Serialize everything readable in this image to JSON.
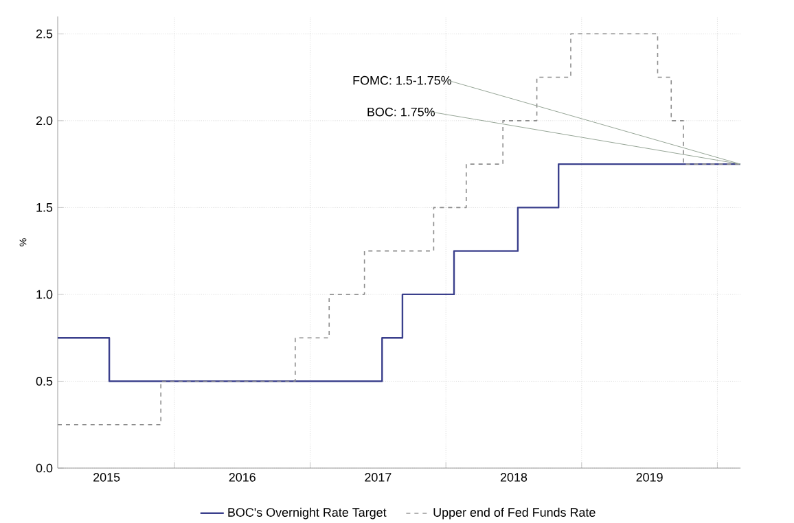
{
  "chart_data": {
    "type": "step",
    "ylabel": "%",
    "xlim": [
      2015.14,
      2020.17
    ],
    "ylim": [
      0,
      2.6
    ],
    "xticks": [
      {
        "value": 2016,
        "label": null
      },
      {
        "value": 2017,
        "label": null
      },
      {
        "value": 2018,
        "label": null
      },
      {
        "value": 2019,
        "label": null
      },
      {
        "value": 2020,
        "label": null
      },
      {
        "value": 2015.5,
        "label": "2015"
      },
      {
        "value": 2016.5,
        "label": "2016"
      },
      {
        "value": 2017.5,
        "label": "2017"
      },
      {
        "value": 2018.5,
        "label": "2018"
      },
      {
        "value": 2019.5,
        "label": "2019"
      }
    ],
    "yticks": [
      {
        "value": 0,
        "label": "0.0"
      },
      {
        "value": 0.5,
        "label": "0.5"
      },
      {
        "value": 1,
        "label": "1.0"
      },
      {
        "value": 1.5,
        "label": "1.5"
      },
      {
        "value": 2,
        "label": "2.0"
      },
      {
        "value": 2.5,
        "label": "2.5"
      }
    ],
    "grid": true,
    "legend": "bottom",
    "marker": "none",
    "series": [
      {
        "name": "BOC's Overnight Rate Target",
        "color": "#3a3f8c",
        "line_style": "solid",
        "x": [
          2015.14,
          2015.52,
          2017.53,
          2017.68,
          2018.06,
          2018.53,
          2018.83,
          2020.17
        ],
        "values": [
          0.75,
          0.5,
          0.75,
          1.0,
          1.25,
          1.5,
          1.75,
          1.75
        ]
      },
      {
        "name": "Upper end of Fed Funds Rate",
        "color": "#8c8c8c",
        "line_style": "dashed",
        "x": [
          2015.14,
          2015.9,
          2016.89,
          2017.14,
          2017.4,
          2017.91,
          2018.15,
          2018.42,
          2018.67,
          2018.92,
          2019.56,
          2019.66,
          2019.75,
          2020.17
        ],
        "values": [
          0.25,
          0.5,
          0.75,
          1.0,
          1.25,
          1.5,
          1.75,
          2.0,
          2.25,
          2.5,
          2.25,
          2.0,
          1.75,
          1.75
        ]
      }
    ],
    "annotations": [
      {
        "text": "FOMC: 1.5-1.75%",
        "x": 2020.17,
        "y": 1.75
      },
      {
        "text": "BOC: 1.75%",
        "x": 2020.17,
        "y": 1.75
      }
    ]
  }
}
